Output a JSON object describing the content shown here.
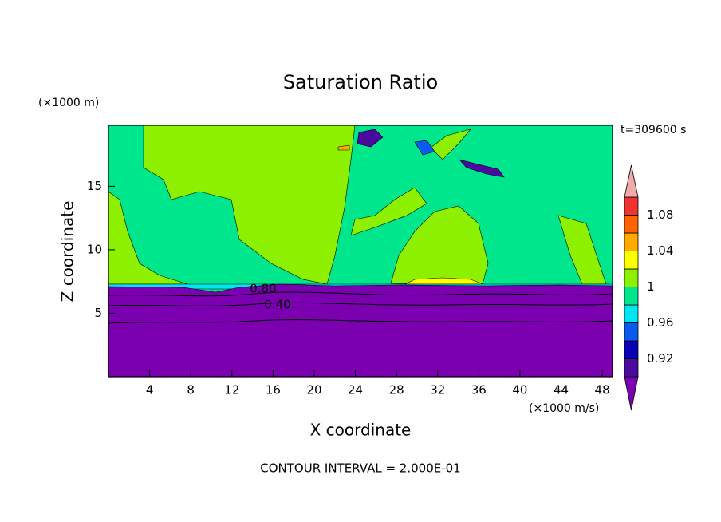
{
  "chart_data": {
    "type": "contour",
    "title": "Saturation Ratio",
    "x_label": "X coordinate",
    "y_label": "Z coordinate",
    "x_unit": "(×1000 m/s)",
    "y_unit": "(×1000 m)",
    "time_label": "t=309600 s",
    "footer": "CONTOUR INTERVAL = 2.000E-01",
    "xlim": [
      0,
      49
    ],
    "xticks": [
      4,
      8,
      12,
      16,
      20,
      24,
      28,
      32,
      36,
      40,
      44,
      48
    ],
    "ylim": [
      0,
      19.8
    ],
    "yticks": [
      5,
      10,
      15
    ],
    "contour_labels": [
      "0.80",
      "0.40"
    ],
    "colorbar": {
      "levels": [
        0.9,
        0.92,
        0.94,
        0.96,
        0.98,
        1,
        1.02,
        1.04,
        1.06,
        1.08,
        1.1
      ],
      "colors": [
        "#7a00b0",
        "#4a0aa0",
        "#0a00b4",
        "#0a5af0",
        "#00e6f0",
        "#00e68c",
        "#8cf000",
        "#ffff00",
        "#ffaa00",
        "#ff6400",
        "#f03232",
        "#f0aaaa"
      ],
      "ticks": [
        0.92,
        0.96,
        1,
        1.04,
        1.08
      ]
    }
  }
}
